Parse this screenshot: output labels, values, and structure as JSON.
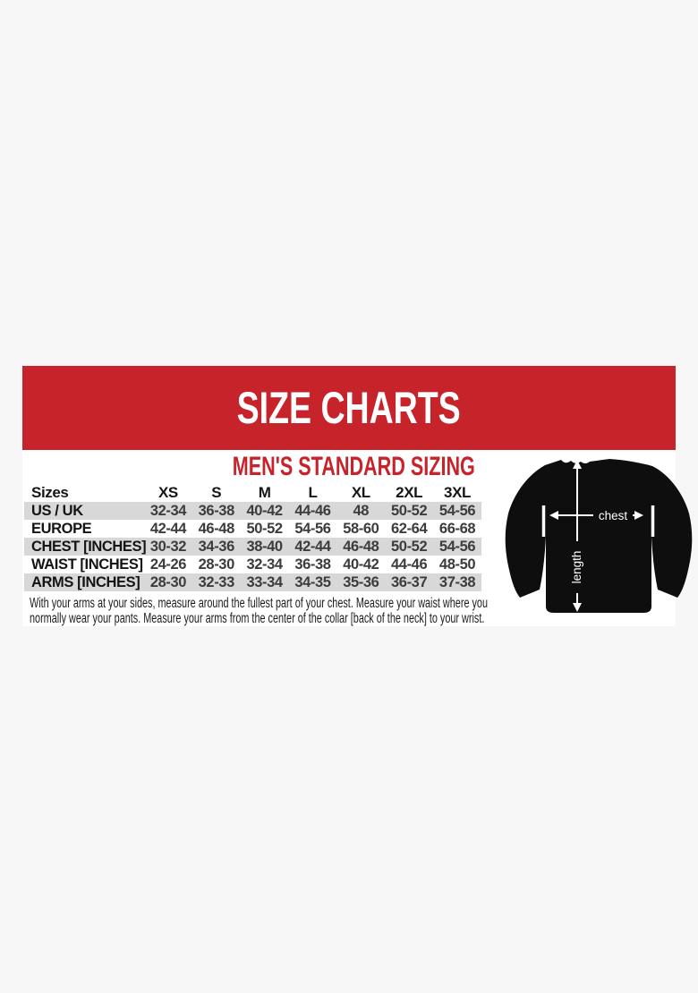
{
  "page": {
    "background_color": "#f7f7f8"
  },
  "banner": {
    "title": "SIZE CHARTS",
    "background_color": "#c7232a",
    "text_color": "#ffffff"
  },
  "section": {
    "subtitle": "MEN'S STANDARD SIZING",
    "accent_color": "#c7232a"
  },
  "chart_data": {
    "type": "table",
    "title": "SIZE CHARTS",
    "subtitle": "MEN'S STANDARD SIZING",
    "columns": [
      "Sizes",
      "XS",
      "S",
      "M",
      "L",
      "XL",
      "2XL",
      "3XL"
    ],
    "rows": [
      {
        "label": "US / UK",
        "values": [
          "32-34",
          "36-38",
          "40-42",
          "44-46",
          "48",
          "50-52",
          "54-56"
        ]
      },
      {
        "label": "EUROPE",
        "values": [
          "42-44",
          "46-48",
          "50-52",
          "54-56",
          "58-60",
          "62-64",
          "66-68"
        ]
      },
      {
        "label": "CHEST [INCHES]",
        "values": [
          "30-32",
          "34-36",
          "38-40",
          "42-44",
          "46-48",
          "50-52",
          "54-56"
        ]
      },
      {
        "label": "WAIST [INCHES]",
        "values": [
          "24-26",
          "28-30",
          "32-34",
          "36-38",
          "40-42",
          "44-46",
          "48-50"
        ]
      },
      {
        "label": "ARMS [INCHES]",
        "values": [
          "28-30",
          "32-33",
          "33-34",
          "34-35",
          "35-36",
          "36-37",
          "37-38"
        ]
      }
    ],
    "stripe_color": "#d8d8d8",
    "striped_row_labels": [
      "US / UK",
      "CHEST [INCHES]",
      "ARMS [INCHES]"
    ],
    "note": "With your arms at your sides, measure around the fullest part of your chest. Measure your waist where you normally wear your pants. Measure your arms from the center of the collar [back of the neck] to your wrist."
  },
  "diagram": {
    "description": "long-sleeve-shirt-measurement-diagram",
    "shirt_color": "#0e0e0e",
    "arrow_color": "#ffffff",
    "chest_label": "chest",
    "length_label": "length"
  }
}
